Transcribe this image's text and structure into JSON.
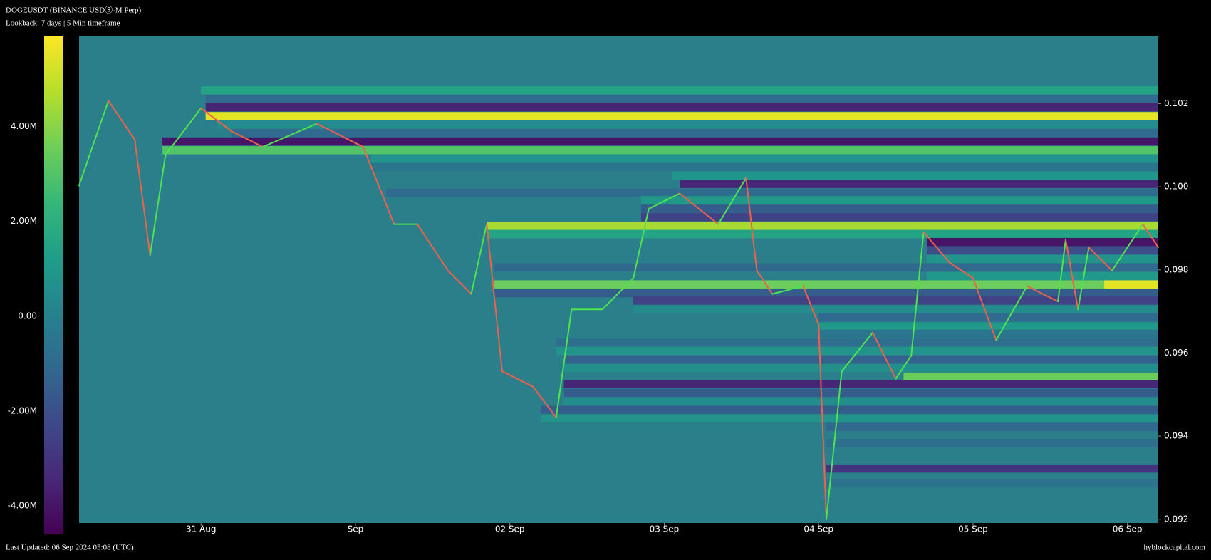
{
  "chart_data": {
    "type": "heatmap",
    "title": "DOGEUSDT (BINANCE USDⓈ-M Perp)",
    "subtitle": "Lookback: 7 days | 5 Min timeframe",
    "footer_left": "Last Updated: 06 Sep 2024 05:08 (UTC)",
    "footer_right": "hyblockcapital.com",
    "background": "#2b7f8b",
    "colorscale": [
      "#440154",
      "#482878",
      "#3e4989",
      "#31688e",
      "#26828e",
      "#1f9e89",
      "#35b779",
      "#6ece58",
      "#b5de2b",
      "#fde725"
    ],
    "clim": [
      -4.6,
      5.9
    ],
    "cticks": [
      {
        "value": 4,
        "label": "4.00M"
      },
      {
        "value": 2,
        "label": "2.00M"
      },
      {
        "value": 0,
        "label": "0.00"
      },
      {
        "value": -2,
        "label": "-2.00M"
      },
      {
        "value": -4,
        "label": "-4.00M"
      }
    ],
    "xlim": [
      -0.79,
      6.2
    ],
    "xticks": [
      {
        "value": 0,
        "label": "31 Aug"
      },
      {
        "value": 1,
        "label": "Sep"
      },
      {
        "value": 2,
        "label": "02 Sep"
      },
      {
        "value": 3,
        "label": "03 Sep"
      },
      {
        "value": 4,
        "label": "04 Sep"
      },
      {
        "value": 5,
        "label": "05 Sep"
      },
      {
        "value": 6,
        "label": "06 Sep"
      }
    ],
    "ylim": [
      0.09191,
      0.10362
    ],
    "yticks": [
      0.092,
      0.094,
      0.096,
      0.098,
      {
        "value": 0.1,
        "label": "0.100"
      },
      0.102
    ],
    "bands": [
      {
        "price": 0.10232,
        "start": 0,
        "value": 1.5
      },
      {
        "price": 0.10211,
        "start": 0.03,
        "value": -1
      },
      {
        "price": 0.10191,
        "start": 0.03,
        "value": -3.5
      },
      {
        "price": 0.1017,
        "start": 0.03,
        "value": 5.5
      },
      {
        "price": 0.1015,
        "start": 0.1,
        "value": 0.5
      },
      {
        "price": 0.10129,
        "start": 0.2,
        "value": -1
      },
      {
        "price": 0.10109,
        "start": -0.25,
        "value": -4
      },
      {
        "price": 0.10088,
        "start": -0.25,
        "value": 3
      },
      {
        "price": 0.10068,
        "start": 1.1,
        "value": 0.8
      },
      {
        "price": 0.10047,
        "start": 1.1,
        "value": -0.5
      },
      {
        "price": 0.10027,
        "start": 3.05,
        "value": 0.8
      },
      {
        "price": 0.10007,
        "start": 3.1,
        "value": -3.5
      },
      {
        "price": 0.09986,
        "start": 1.2,
        "value": -1
      },
      {
        "price": 0.09968,
        "start": 2.85,
        "value": 1
      },
      {
        "price": 0.09947,
        "start": 2.85,
        "value": -1.5
      },
      {
        "price": 0.09927,
        "start": 2.85,
        "value": -2.5
      },
      {
        "price": 0.09906,
        "start": 1.85,
        "value": 4.5
      },
      {
        "price": 0.09886,
        "start": 1.85,
        "value": 1.5
      },
      {
        "price": 0.09867,
        "start": 4.7,
        "value": -4
      },
      {
        "price": 0.09847,
        "start": 4.7,
        "value": -2
      },
      {
        "price": 0.09826,
        "start": 4.7,
        "value": 0.8
      },
      {
        "price": 0.09806,
        "start": 1.9,
        "value": -1
      },
      {
        "price": 0.09785,
        "start": 4.7,
        "value": 1
      },
      {
        "price": 0.09765,
        "start": 1.9,
        "value": 3.5
      },
      {
        "price": 0.09765,
        "start": 5.85,
        "value": 5.5
      },
      {
        "price": 0.09744,
        "start": 1.9,
        "value": -1.5
      },
      {
        "price": 0.09726,
        "start": 2.8,
        "value": -2.5
      },
      {
        "price": 0.09705,
        "start": 2.8,
        "value": 0.5
      },
      {
        "price": 0.09685,
        "start": 4.0,
        "value": -1
      },
      {
        "price": 0.09664,
        "start": 4.0,
        "value": 1
      },
      {
        "price": 0.09646,
        "start": 4.0,
        "value": -0.5
      },
      {
        "price": 0.09625,
        "start": 2.3,
        "value": -0.8
      },
      {
        "price": 0.09605,
        "start": 2.3,
        "value": 0.8
      },
      {
        "price": 0.09584,
        "start": 2.35,
        "value": -1.3
      },
      {
        "price": 0.09564,
        "start": 2.35,
        "value": 0.6
      },
      {
        "price": 0.09543,
        "start": 4.55,
        "value": 3.5
      },
      {
        "price": 0.09525,
        "start": 2.35,
        "value": -3.5
      },
      {
        "price": 0.09504,
        "start": 2.35,
        "value": -1.5
      },
      {
        "price": 0.09484,
        "start": 2.35,
        "value": 0.5
      },
      {
        "price": 0.09463,
        "start": 2.2,
        "value": -1.5
      },
      {
        "price": 0.09443,
        "start": 2.2,
        "value": 0.8
      },
      {
        "price": 0.09422,
        "start": 4.05,
        "value": -1
      },
      {
        "price": 0.09383,
        "start": 4.05,
        "value": -0.8
      },
      {
        "price": 0.09322,
        "start": 4.05,
        "value": -3
      },
      {
        "price": 0.09287,
        "start": 4.05,
        "value": -0.6
      }
    ],
    "price": {
      "up_color": "#4ee44e",
      "down_color": "#f0604a",
      "x": [
        -0.79,
        -0.6,
        -0.43,
        -0.33,
        -0.23,
        0,
        0.2,
        0.4,
        0.75,
        1.05,
        1.15,
        1.25,
        1.4,
        1.6,
        1.75,
        1.85,
        1.95,
        2.15,
        2.3,
        2.4,
        2.6,
        2.8,
        2.9,
        3.1,
        3.35,
        3.53,
        3.6,
        3.7,
        3.9,
        4.0,
        4.05,
        4.15,
        4.35,
        4.5,
        4.6,
        4.68,
        4.85,
        5.0,
        5.15,
        5.35,
        5.55,
        5.6,
        5.68,
        5.75,
        5.9,
        6.1,
        6.2
      ],
      "values": [
        0.10003,
        0.10207,
        0.10114,
        0.09835,
        0.10077,
        0.10189,
        0.10133,
        0.10096,
        0.10152,
        0.10096,
        0.10003,
        0.0991,
        0.0991,
        0.09798,
        0.09742,
        0.0991,
        0.09556,
        0.09519,
        0.09445,
        0.09705,
        0.09705,
        0.0978,
        0.09947,
        0.09984,
        0.0991,
        0.10021,
        0.09798,
        0.09742,
        0.09761,
        0.09668,
        0.092,
        0.09556,
        0.09649,
        0.09538,
        0.09594,
        0.09891,
        0.09817,
        0.0978,
        0.09631,
        0.09761,
        0.09724,
        0.09873,
        0.09705,
        0.09854,
        0.09798,
        0.0991,
        0.09854
      ]
    }
  }
}
